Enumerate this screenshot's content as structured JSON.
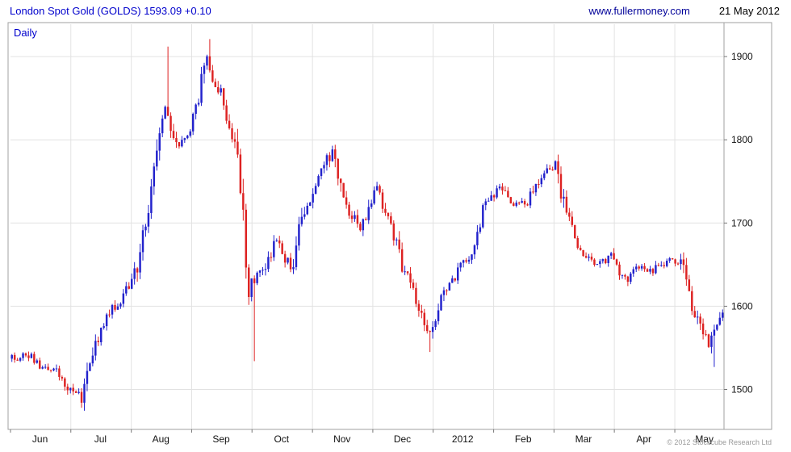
{
  "header": {
    "title": "London Spot Gold (GOLDS) 1593.09 +0.10",
    "website": "www.fullermoney.com",
    "date": "21 May 2012"
  },
  "chart": {
    "timeframe_label": "Daily",
    "copyright": "© 2012 Stockcube Research Ltd"
  },
  "chart_data": {
    "type": "candlestick",
    "title": "London Spot Gold (GOLDS)",
    "timeframe": "Daily",
    "last_price": 1593.09,
    "change": 0.1,
    "ylim": [
      1452,
      1935
    ],
    "y_ticks": [
      1500,
      1600,
      1700,
      1800,
      1900
    ],
    "grid": true,
    "legend": "none",
    "x_months": [
      {
        "label": "Jun",
        "week": 0
      },
      {
        "label": "Jul",
        "week": 4.33
      },
      {
        "label": "Aug",
        "week": 8.67
      },
      {
        "label": "Sep",
        "week": 13
      },
      {
        "label": "Oct",
        "week": 17.33
      },
      {
        "label": "Nov",
        "week": 21.67
      },
      {
        "label": "Dec",
        "week": 26
      },
      {
        "label": "2012",
        "week": 30.33
      },
      {
        "label": "Feb",
        "week": 34.67
      },
      {
        "label": "Mar",
        "week": 39
      },
      {
        "label": "Apr",
        "week": 43.33
      },
      {
        "label": "May",
        "week": 47.67
      }
    ],
    "weekly_closes": [
      1537,
      1543,
      1528,
      1524,
      1505,
      1490,
      1556,
      1594,
      1613,
      1648,
      1748,
      1838,
      1792,
      1822,
      1896,
      1852,
      1800,
      1624,
      1642,
      1678,
      1644,
      1718,
      1754,
      1788,
      1722,
      1692,
      1744,
      1712,
      1650,
      1607,
      1565,
      1616,
      1642,
      1662,
      1722,
      1742,
      1726,
      1722,
      1758,
      1772,
      1698,
      1662,
      1652,
      1660,
      1632,
      1650,
      1642,
      1655,
      1650,
      1592,
      1548,
      1593
    ],
    "extremes": [
      {
        "week": 5,
        "type": "low",
        "price": 1478
      },
      {
        "week": 11.2,
        "type": "high",
        "price": 1912
      },
      {
        "week": 14.2,
        "type": "high",
        "price": 1921
      },
      {
        "week": 17.4,
        "type": "low",
        "price": 1534
      },
      {
        "week": 30.0,
        "type": "low",
        "price": 1545
      },
      {
        "week": 50.4,
        "type": "low",
        "price": 1527
      }
    ],
    "colors": {
      "up": "#2222cc",
      "down": "#dd2222",
      "grid": "#e2e2e2",
      "axis": "#a0a0a0",
      "tick": "#777777",
      "label": "#111111"
    }
  }
}
